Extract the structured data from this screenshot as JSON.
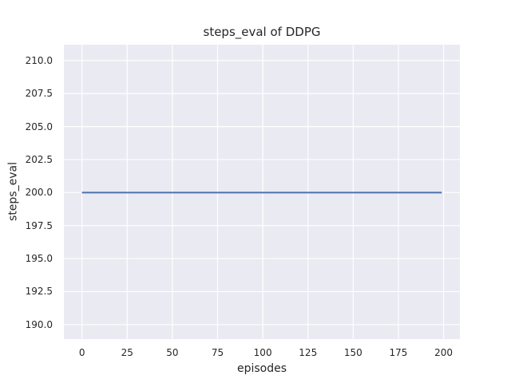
{
  "chart_data": {
    "type": "line",
    "title": "steps_eval of DDPG",
    "xlabel": "episodes",
    "ylabel": "steps_eval",
    "xlim": [
      -10,
      209
    ],
    "ylim": [
      188.9,
      211.2
    ],
    "xticks": [
      0,
      25,
      50,
      75,
      100,
      125,
      150,
      175,
      200
    ],
    "xtick_labels": [
      "0",
      "25",
      "50",
      "75",
      "100",
      "125",
      "150",
      "175",
      "200"
    ],
    "yticks": [
      190.0,
      192.5,
      195.0,
      197.5,
      200.0,
      202.5,
      205.0,
      207.5,
      210.0
    ],
    "ytick_labels": [
      "190.0",
      "192.5",
      "195.0",
      "197.5",
      "200.0",
      "202.5",
      "205.0",
      "207.5",
      "210.0"
    ],
    "grid": true,
    "legend": "none",
    "series": [
      {
        "name": "steps_eval",
        "x": [
          0,
          199
        ],
        "y": [
          200,
          200
        ],
        "color": "#4c72b0",
        "linewidth": 2
      }
    ],
    "colors": {
      "figure_background": "#ffffff",
      "plot_background": "#eaeaf2",
      "gridline": "#ffffff",
      "text": "#262626"
    }
  }
}
